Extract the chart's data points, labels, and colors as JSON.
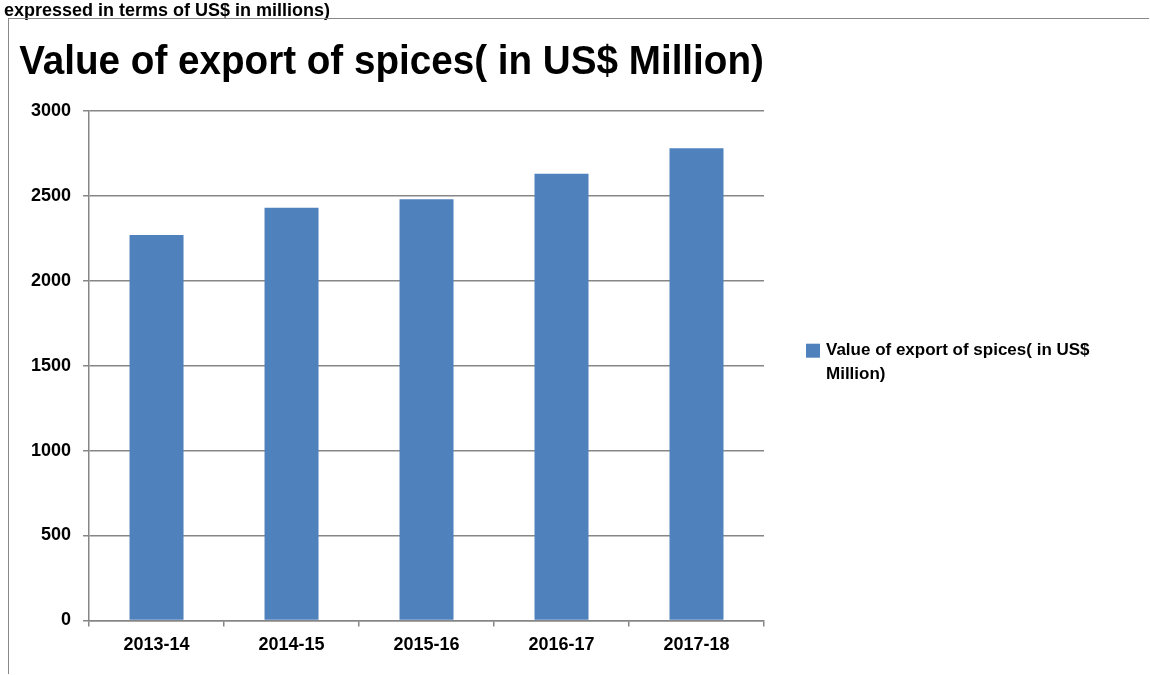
{
  "chart_data": {
    "type": "bar",
    "title": "Value of export of spices( in US$ Million)",
    "annotations": [
      "expressed in terms of US$ in millions)"
    ],
    "categories": [
      "2013-14",
      "2014-15",
      "2015-16",
      "2016-17",
      "2017-18"
    ],
    "series": [
      {
        "name": "Value of export of spices( in US$ Million)",
        "color": "#4f81bd",
        "values": [
          2270,
          2430,
          2480,
          2630,
          2780
        ]
      }
    ],
    "ylim": [
      0,
      3000
    ],
    "yticks": [
      0,
      500,
      1000,
      1500,
      2000,
      2500,
      3000
    ],
    "grid": "y",
    "legend": "right"
  }
}
